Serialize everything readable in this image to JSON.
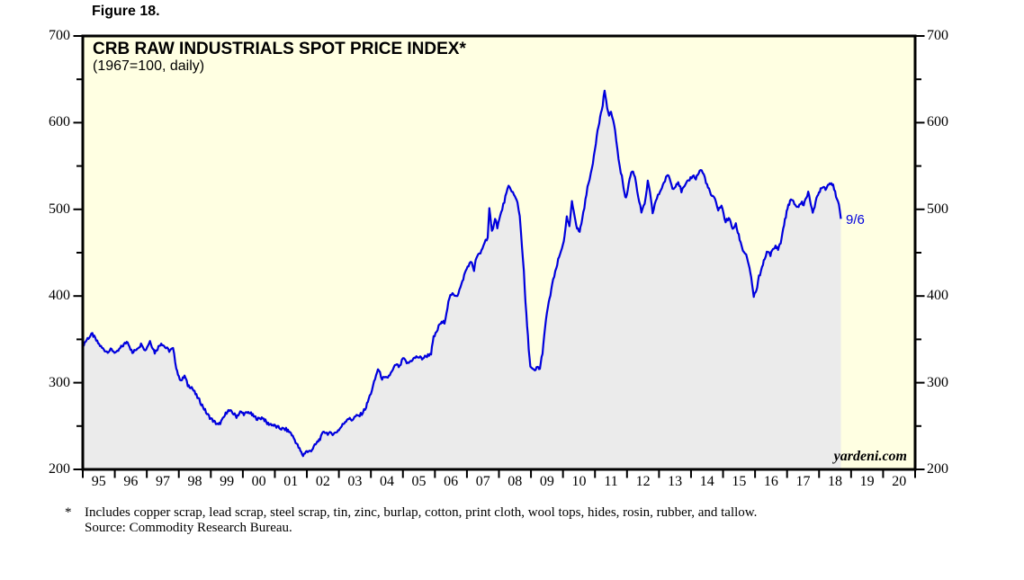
{
  "figure_label": "Figure 18.",
  "footnote": {
    "marker": "*",
    "line1": "Includes copper scrap, lead scrap, steel scrap, tin, zinc, burlap, cotton, print cloth, wool tops, hides, rosin, rubber, and tallow.",
    "line2": "Source: Commodity Research Bureau."
  },
  "chart_data": {
    "type": "area",
    "title": "CRB RAW INDUSTRIALS SPOT PRICE INDEX*",
    "subtitle": "(1967=100, daily)",
    "watermark": "yardeni.com",
    "last_point_label": "9/6",
    "legend": "none",
    "grid": "off",
    "y_axis": {
      "min": 200,
      "max": 700,
      "major_step": 100,
      "minor_step": 50,
      "major_tick_labels": [
        "200",
        "300",
        "400",
        "500",
        "600",
        "700"
      ],
      "sides": "both"
    },
    "x_axis": {
      "start": 1995,
      "end": 2021,
      "tick_labels": [
        "95",
        "96",
        "97",
        "98",
        "99",
        "00",
        "01",
        "02",
        "03",
        "04",
        "05",
        "06",
        "07",
        "08",
        "09",
        "10",
        "11",
        "12",
        "13",
        "14",
        "15",
        "16",
        "17",
        "18",
        "19",
        "20"
      ]
    },
    "colors": {
      "line": "#0000DD",
      "fill": "#EBEBEB",
      "plot_bg": "#FFFFE2",
      "frame": "#000000",
      "label_blue": "#0000DD"
    },
    "series": [
      {
        "name": "CRB Raw Industrials Spot Price Index (1967=100)",
        "points": [
          [
            1995.0,
            343
          ],
          [
            1995.15,
            351
          ],
          [
            1995.3,
            356
          ],
          [
            1995.45,
            347
          ],
          [
            1995.6,
            340
          ],
          [
            1995.75,
            336
          ],
          [
            1995.9,
            338
          ],
          [
            1996.05,
            334
          ],
          [
            1996.2,
            341
          ],
          [
            1996.4,
            348
          ],
          [
            1996.55,
            334
          ],
          [
            1996.7,
            340
          ],
          [
            1996.85,
            345
          ],
          [
            1996.95,
            337
          ],
          [
            1997.1,
            348
          ],
          [
            1997.25,
            335
          ],
          [
            1997.45,
            346
          ],
          [
            1997.6,
            340
          ],
          [
            1997.7,
            337
          ],
          [
            1997.82,
            339
          ],
          [
            1997.92,
            318
          ],
          [
            1998.0,
            306
          ],
          [
            1998.1,
            303
          ],
          [
            1998.18,
            308
          ],
          [
            1998.28,
            297
          ],
          [
            1998.4,
            295
          ],
          [
            1998.55,
            285
          ],
          [
            1998.7,
            276
          ],
          [
            1998.88,
            264
          ],
          [
            1998.97,
            260
          ],
          [
            1999.1,
            255
          ],
          [
            1999.24,
            251
          ],
          [
            1999.38,
            258
          ],
          [
            1999.52,
            268
          ],
          [
            1999.66,
            266
          ],
          [
            1999.8,
            261
          ],
          [
            1999.92,
            266
          ],
          [
            2000.06,
            264
          ],
          [
            2000.2,
            266
          ],
          [
            2000.34,
            261
          ],
          [
            2000.48,
            258
          ],
          [
            2000.62,
            260
          ],
          [
            2000.76,
            253
          ],
          [
            2000.9,
            252
          ],
          [
            2001.05,
            249
          ],
          [
            2001.2,
            247
          ],
          [
            2001.35,
            246
          ],
          [
            2001.5,
            242
          ],
          [
            2001.65,
            232
          ],
          [
            2001.8,
            221
          ],
          [
            2001.88,
            216
          ],
          [
            2001.97,
            221
          ],
          [
            2002.05,
            220
          ],
          [
            2002.16,
            223
          ],
          [
            2002.3,
            230
          ],
          [
            2002.44,
            237
          ],
          [
            2002.53,
            244
          ],
          [
            2002.62,
            242
          ],
          [
            2002.75,
            241
          ],
          [
            2002.89,
            242
          ],
          [
            2003.03,
            247
          ],
          [
            2003.17,
            254
          ],
          [
            2003.28,
            259
          ],
          [
            2003.4,
            257
          ],
          [
            2003.52,
            261
          ],
          [
            2003.65,
            262
          ],
          [
            2003.75,
            266
          ],
          [
            2003.85,
            272
          ],
          [
            2003.93,
            281
          ],
          [
            2004.0,
            288
          ],
          [
            2004.1,
            300
          ],
          [
            2004.22,
            316
          ],
          [
            2004.35,
            305
          ],
          [
            2004.5,
            305
          ],
          [
            2004.65,
            312
          ],
          [
            2004.78,
            321
          ],
          [
            2004.9,
            318
          ],
          [
            2005.0,
            328
          ],
          [
            2005.15,
            322
          ],
          [
            2005.3,
            327
          ],
          [
            2005.45,
            330
          ],
          [
            2005.6,
            328
          ],
          [
            2005.75,
            331
          ],
          [
            2005.88,
            334
          ],
          [
            2005.96,
            352
          ],
          [
            2006.05,
            358
          ],
          [
            2006.15,
            368
          ],
          [
            2006.3,
            370
          ],
          [
            2006.45,
            398
          ],
          [
            2006.55,
            402
          ],
          [
            2006.7,
            401
          ],
          [
            2006.83,
            413
          ],
          [
            2006.94,
            427
          ],
          [
            2007.05,
            436
          ],
          [
            2007.15,
            439
          ],
          [
            2007.22,
            430
          ],
          [
            2007.3,
            445
          ],
          [
            2007.42,
            449
          ],
          [
            2007.55,
            462
          ],
          [
            2007.65,
            468
          ],
          [
            2007.7,
            500
          ],
          [
            2007.78,
            474
          ],
          [
            2007.88,
            490
          ],
          [
            2007.95,
            480
          ],
          [
            2008.07,
            496
          ],
          [
            2008.2,
            514
          ],
          [
            2008.3,
            526
          ],
          [
            2008.4,
            522
          ],
          [
            2008.5,
            514
          ],
          [
            2008.58,
            508
          ],
          [
            2008.65,
            492
          ],
          [
            2008.72,
            458
          ],
          [
            2008.78,
            427
          ],
          [
            2008.83,
            392
          ],
          [
            2008.88,
            366
          ],
          [
            2008.93,
            340
          ],
          [
            2008.98,
            318
          ],
          [
            2009.05,
            315
          ],
          [
            2009.12,
            313
          ],
          [
            2009.2,
            318
          ],
          [
            2009.28,
            316
          ],
          [
            2009.36,
            335
          ],
          [
            2009.44,
            362
          ],
          [
            2009.5,
            382
          ],
          [
            2009.58,
            396
          ],
          [
            2009.66,
            413
          ],
          [
            2009.76,
            427
          ],
          [
            2009.85,
            441
          ],
          [
            2009.94,
            452
          ],
          [
            2010.05,
            468
          ],
          [
            2010.12,
            490
          ],
          [
            2010.2,
            480
          ],
          [
            2010.28,
            508
          ],
          [
            2010.36,
            494
          ],
          [
            2010.44,
            478
          ],
          [
            2010.52,
            474
          ],
          [
            2010.6,
            489
          ],
          [
            2010.7,
            510
          ],
          [
            2010.8,
            532
          ],
          [
            2010.9,
            545
          ],
          [
            2011.0,
            570
          ],
          [
            2011.08,
            592
          ],
          [
            2011.16,
            606
          ],
          [
            2011.24,
            620
          ],
          [
            2011.3,
            638
          ],
          [
            2011.38,
            615
          ],
          [
            2011.44,
            610
          ],
          [
            2011.5,
            612
          ],
          [
            2011.57,
            602
          ],
          [
            2011.63,
            589
          ],
          [
            2011.7,
            570
          ],
          [
            2011.77,
            549
          ],
          [
            2011.84,
            537
          ],
          [
            2011.92,
            520
          ],
          [
            2011.97,
            512
          ],
          [
            2012.08,
            535
          ],
          [
            2012.16,
            545
          ],
          [
            2012.25,
            538
          ],
          [
            2012.35,
            515
          ],
          [
            2012.45,
            497
          ],
          [
            2012.55,
            505
          ],
          [
            2012.65,
            532
          ],
          [
            2012.72,
            518
          ],
          [
            2012.8,
            496
          ],
          [
            2012.9,
            510
          ],
          [
            2013.0,
            518
          ],
          [
            2013.12,
            528
          ],
          [
            2013.22,
            536
          ],
          [
            2013.3,
            540
          ],
          [
            2013.42,
            524
          ],
          [
            2013.52,
            528
          ],
          [
            2013.6,
            532
          ],
          [
            2013.7,
            521
          ],
          [
            2013.8,
            526
          ],
          [
            2013.92,
            533
          ],
          [
            2014.05,
            539
          ],
          [
            2014.15,
            536
          ],
          [
            2014.3,
            546
          ],
          [
            2014.4,
            540
          ],
          [
            2014.5,
            528
          ],
          [
            2014.62,
            517
          ],
          [
            2014.75,
            511
          ],
          [
            2014.85,
            500
          ],
          [
            2014.95,
            504
          ],
          [
            2015.08,
            486
          ],
          [
            2015.18,
            490
          ],
          [
            2015.3,
            478
          ],
          [
            2015.4,
            482
          ],
          [
            2015.52,
            466
          ],
          [
            2015.62,
            453
          ],
          [
            2015.72,
            448
          ],
          [
            2015.8,
            437
          ],
          [
            2015.88,
            420
          ],
          [
            2015.96,
            400
          ],
          [
            2016.04,
            405
          ],
          [
            2016.12,
            422
          ],
          [
            2016.22,
            432
          ],
          [
            2016.3,
            444
          ],
          [
            2016.4,
            452
          ],
          [
            2016.48,
            448
          ],
          [
            2016.56,
            453
          ],
          [
            2016.64,
            457
          ],
          [
            2016.72,
            455
          ],
          [
            2016.8,
            461
          ],
          [
            2016.88,
            478
          ],
          [
            2016.96,
            492
          ],
          [
            2017.04,
            505
          ],
          [
            2017.12,
            511
          ],
          [
            2017.2,
            508
          ],
          [
            2017.28,
            504
          ],
          [
            2017.36,
            503
          ],
          [
            2017.44,
            508
          ],
          [
            2017.52,
            506
          ],
          [
            2017.6,
            514
          ],
          [
            2017.66,
            519
          ],
          [
            2017.72,
            510
          ],
          [
            2017.8,
            498
          ],
          [
            2017.86,
            502
          ],
          [
            2017.92,
            512
          ],
          [
            2017.97,
            517
          ],
          [
            2018.05,
            524
          ],
          [
            2018.12,
            527
          ],
          [
            2018.2,
            524
          ],
          [
            2018.28,
            528
          ],
          [
            2018.36,
            531
          ],
          [
            2018.44,
            529
          ],
          [
            2018.5,
            519
          ],
          [
            2018.56,
            510
          ],
          [
            2018.62,
            505
          ],
          [
            2018.68,
            489
          ]
        ]
      }
    ]
  }
}
